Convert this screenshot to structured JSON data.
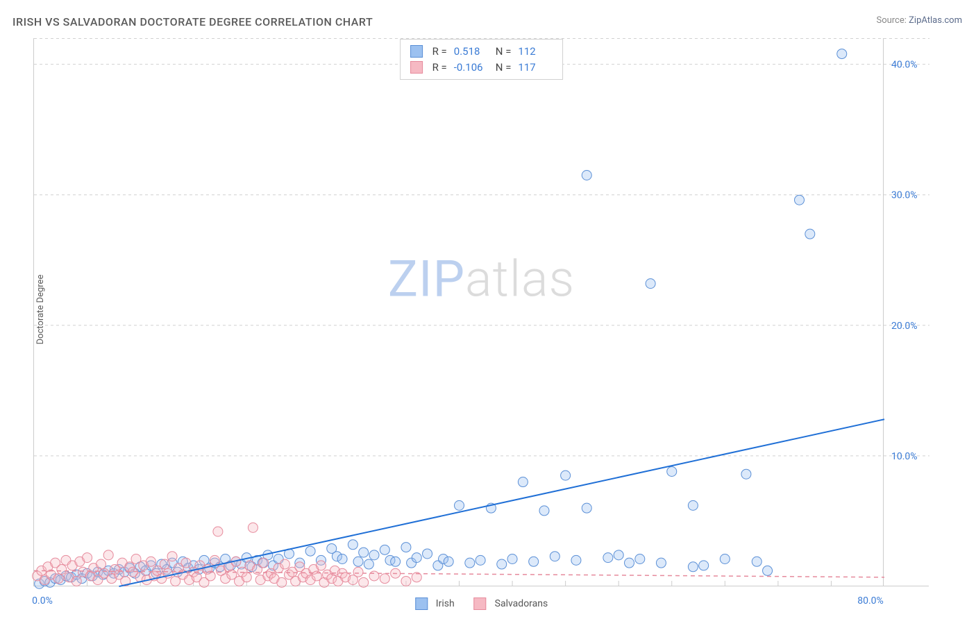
{
  "title": "IRISH VS SALVADORAN DOCTORATE DEGREE CORRELATION CHART",
  "source_label": "Source: ",
  "source_link": "ZipAtlas.com",
  "y_axis_title": "Doctorate Degree",
  "watermark_a": "ZIP",
  "watermark_b": "atlas",
  "chart": {
    "type": "scatter",
    "background_color": "#ffffff",
    "grid_color": "#d0d0d0",
    "axis_color": "#cccccc",
    "tick_label_color": "#3a7bd5",
    "title_color": "#5a5a5a",
    "title_fontsize": 16,
    "tick_fontsize": 14,
    "axis_title_fontsize": 13,
    "xlim": [
      0,
      80
    ],
    "ylim": [
      0,
      42
    ],
    "x_ticks_major": [
      0,
      80
    ],
    "x_ticks_minor": [
      5,
      10,
      15,
      20,
      25,
      30,
      35,
      40,
      45,
      50,
      55,
      60,
      65,
      70,
      75
    ],
    "x_tick_labels": {
      "0": "0.0%",
      "80": "80.0%"
    },
    "y_ticks": [
      10,
      20,
      30,
      40
    ],
    "y_tick_labels": {
      "10": "10.0%",
      "20": "20.0%",
      "30": "30.0%",
      "40": "40.0%"
    },
    "marker_radius": 7,
    "marker_stroke_width": 1,
    "marker_fill_opacity": 0.35,
    "series": [
      {
        "name": "Irish",
        "color_fill": "#9cc1f0",
        "color_stroke": "#5a8fd6",
        "r": 0.518,
        "n": 112,
        "regression": {
          "x1": 8,
          "y1": 0,
          "x2": 80,
          "y2": 12.8,
          "color": "#1f6fd6",
          "width": 2,
          "dash": ""
        },
        "points": [
          [
            0.5,
            0.2
          ],
          [
            1,
            0.4
          ],
          [
            1.5,
            0.3
          ],
          [
            2,
            0.6
          ],
          [
            2.5,
            0.5
          ],
          [
            3,
            0.8
          ],
          [
            3.5,
            0.7
          ],
          [
            4,
            0.9
          ],
          [
            4.5,
            0.6
          ],
          [
            5,
            1.0
          ],
          [
            5.5,
            0.8
          ],
          [
            6,
            1.1
          ],
          [
            6.5,
            0.9
          ],
          [
            7,
            1.2
          ],
          [
            7.5,
            1.0
          ],
          [
            8,
            1.3
          ],
          [
            8.5,
            1.1
          ],
          [
            9,
            1.4
          ],
          [
            9.5,
            1.0
          ],
          [
            10,
            1.5
          ],
          [
            10.5,
            1.2
          ],
          [
            11,
            1.6
          ],
          [
            11.5,
            1.0
          ],
          [
            12,
            1.7
          ],
          [
            12.5,
            1.3
          ],
          [
            13,
            1.8
          ],
          [
            13.5,
            1.1
          ],
          [
            14,
            1.9
          ],
          [
            14.5,
            1.4
          ],
          [
            15,
            1.6
          ],
          [
            15.5,
            1.3
          ],
          [
            16,
            2.0
          ],
          [
            16.5,
            1.4
          ],
          [
            17,
            1.8
          ],
          [
            17.5,
            1.5
          ],
          [
            18,
            2.1
          ],
          [
            18.5,
            1.6
          ],
          [
            19,
            1.9
          ],
          [
            19.5,
            1.7
          ],
          [
            20,
            2.2
          ],
          [
            20.5,
            1.5
          ],
          [
            21,
            2.0
          ],
          [
            21.5,
            1.8
          ],
          [
            22,
            2.4
          ],
          [
            22.5,
            1.6
          ],
          [
            23,
            2.1
          ],
          [
            24,
            2.5
          ],
          [
            25,
            1.8
          ],
          [
            26,
            2.7
          ],
          [
            27,
            2.0
          ],
          [
            28,
            2.9
          ],
          [
            28.5,
            2.3
          ],
          [
            29,
            2.1
          ],
          [
            30,
            3.2
          ],
          [
            30.5,
            1.9
          ],
          [
            31,
            2.6
          ],
          [
            31.5,
            1.7
          ],
          [
            32,
            2.4
          ],
          [
            33,
            2.8
          ],
          [
            33.5,
            2.0
          ],
          [
            34,
            1.9
          ],
          [
            35,
            3.0
          ],
          [
            35.5,
            1.8
          ],
          [
            36,
            2.2
          ],
          [
            37,
            2.5
          ],
          [
            38,
            1.6
          ],
          [
            38.5,
            2.1
          ],
          [
            39,
            1.9
          ],
          [
            40,
            6.2
          ],
          [
            41,
            1.8
          ],
          [
            42,
            2.0
          ],
          [
            43,
            6.0
          ],
          [
            44,
            1.7
          ],
          [
            45,
            2.1
          ],
          [
            46,
            8.0
          ],
          [
            47,
            1.9
          ],
          [
            48,
            5.8
          ],
          [
            49,
            2.3
          ],
          [
            50,
            8.5
          ],
          [
            51,
            2.0
          ],
          [
            52,
            6.0
          ],
          [
            52,
            31.5
          ],
          [
            54,
            2.2
          ],
          [
            55,
            2.4
          ],
          [
            56,
            1.8
          ],
          [
            57,
            2.1
          ],
          [
            58,
            23.2
          ],
          [
            59,
            1.8
          ],
          [
            60,
            8.8
          ],
          [
            62,
            6.2
          ],
          [
            62,
            1.5
          ],
          [
            63,
            1.6
          ],
          [
            65,
            2.1
          ],
          [
            67,
            8.6
          ],
          [
            68,
            1.9
          ],
          [
            69,
            1.2
          ],
          [
            72,
            29.6
          ],
          [
            73,
            27.0
          ],
          [
            76,
            40.8
          ]
        ]
      },
      {
        "name": "Salvadorans",
        "color_fill": "#f6b9c3",
        "color_stroke": "#e68a9c",
        "r": -0.106,
        "n": 117,
        "regression": {
          "x1": 0,
          "y1": 1.2,
          "x2": 80,
          "y2": 0.7,
          "color": "#e68a9c",
          "width": 1.5,
          "dash": "6 5"
        },
        "points": [
          [
            0.3,
            0.8
          ],
          [
            0.7,
            1.2
          ],
          [
            1,
            0.5
          ],
          [
            1.3,
            1.5
          ],
          [
            1.6,
            0.9
          ],
          [
            2,
            1.8
          ],
          [
            2.3,
            0.6
          ],
          [
            2.6,
            1.3
          ],
          [
            3,
            2.0
          ],
          [
            3.3,
            0.7
          ],
          [
            3.6,
            1.6
          ],
          [
            4,
            0.4
          ],
          [
            4.3,
            1.9
          ],
          [
            4.6,
            1.1
          ],
          [
            5,
            2.2
          ],
          [
            5.3,
            0.8
          ],
          [
            5.6,
            1.4
          ],
          [
            6,
            0.5
          ],
          [
            6.3,
            1.7
          ],
          [
            6.6,
            1.0
          ],
          [
            7,
            2.4
          ],
          [
            7.3,
            0.6
          ],
          [
            7.6,
            1.3
          ],
          [
            8,
            0.9
          ],
          [
            8.3,
            1.8
          ],
          [
            8.6,
            0.4
          ],
          [
            9,
            1.5
          ],
          [
            9.3,
            1.1
          ],
          [
            9.6,
            2.1
          ],
          [
            10,
            0.7
          ],
          [
            10.3,
            1.6
          ],
          [
            10.6,
            0.5
          ],
          [
            11,
            1.9
          ],
          [
            11.3,
            0.8
          ],
          [
            11.6,
            1.2
          ],
          [
            12,
            0.6
          ],
          [
            12.3,
            1.7
          ],
          [
            12.6,
            1.0
          ],
          [
            13,
            2.3
          ],
          [
            13.3,
            0.4
          ],
          [
            13.6,
            1.4
          ],
          [
            14,
            0.9
          ],
          [
            14.3,
            1.8
          ],
          [
            14.6,
            0.5
          ],
          [
            15,
            1.1
          ],
          [
            15.3,
            0.7
          ],
          [
            15.6,
            1.6
          ],
          [
            16,
            0.3
          ],
          [
            16.3,
            1.3
          ],
          [
            16.6,
            0.8
          ],
          [
            17,
            2.0
          ],
          [
            17.3,
            4.2
          ],
          [
            17.6,
            1.2
          ],
          [
            18,
            0.6
          ],
          [
            18.3,
            1.5
          ],
          [
            18.6,
            0.9
          ],
          [
            19,
            1.9
          ],
          [
            19.3,
            0.4
          ],
          [
            19.6,
            1.1
          ],
          [
            20,
            0.7
          ],
          [
            20.3,
            1.6
          ],
          [
            20.6,
            4.5
          ],
          [
            21,
            1.3
          ],
          [
            21.3,
            0.5
          ],
          [
            21.6,
            1.8
          ],
          [
            22,
            0.8
          ],
          [
            22.3,
            1.0
          ],
          [
            22.6,
            0.6
          ],
          [
            23,
            1.4
          ],
          [
            23.3,
            0.3
          ],
          [
            23.6,
            1.7
          ],
          [
            24,
            0.9
          ],
          [
            24.3,
            1.1
          ],
          [
            24.6,
            0.4
          ],
          [
            25,
            1.5
          ],
          [
            25.3,
            0.7
          ],
          [
            25.6,
            1.0
          ],
          [
            26,
            0.5
          ],
          [
            26.3,
            1.3
          ],
          [
            26.6,
            0.8
          ],
          [
            27,
            1.6
          ],
          [
            27.3,
            0.3
          ],
          [
            27.6,
            0.9
          ],
          [
            28,
            0.6
          ],
          [
            28.3,
            1.2
          ],
          [
            28.6,
            0.4
          ],
          [
            29,
            1.0
          ],
          [
            29.3,
            0.7
          ],
          [
            30,
            0.5
          ],
          [
            30.5,
            1.1
          ],
          [
            31,
            0.3
          ],
          [
            32,
            0.8
          ],
          [
            33,
            0.6
          ],
          [
            34,
            1.0
          ],
          [
            35,
            0.4
          ],
          [
            36,
            0.7
          ]
        ]
      }
    ]
  },
  "legend_top": {
    "r_label": "R =",
    "n_label": "N ="
  },
  "legend_bottom": {
    "items": [
      "Irish",
      "Salvadorans"
    ]
  }
}
